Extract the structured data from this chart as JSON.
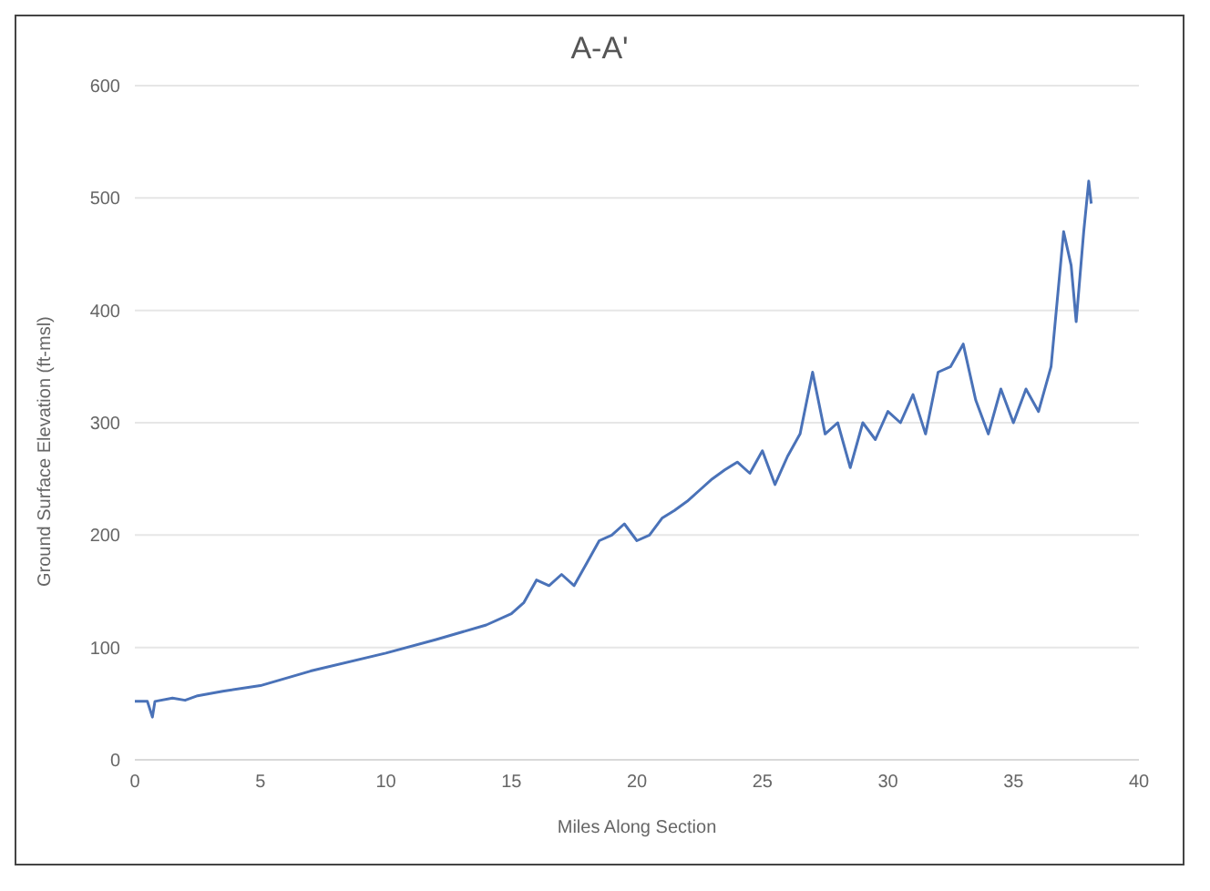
{
  "chart_data": {
    "type": "line",
    "title": "A-A'",
    "xlabel": "Miles Along Section",
    "ylabel": "Ground Surface Elevation (ft-msl)",
    "x": [
      0,
      0.5,
      0.7,
      0.8,
      1.5,
      2,
      2.5,
      3.5,
      5,
      7,
      10,
      12,
      14,
      15,
      15.5,
      16,
      16.5,
      17,
      17.5,
      18,
      18.5,
      19,
      19.5,
      20,
      20.5,
      21,
      21.5,
      22,
      22.5,
      23,
      23.5,
      24,
      24.5,
      25,
      25.5,
      26,
      26.5,
      27,
      27.5,
      28,
      28.5,
      29,
      29.5,
      30,
      30.5,
      31,
      31.5,
      32,
      32.5,
      33,
      33.5,
      34,
      34.5,
      35,
      35.5,
      36,
      36.5,
      37,
      37.3,
      37.5,
      37.8,
      38,
      38.1
    ],
    "series": [
      {
        "color": "#4a72b8",
        "values": [
          52,
          52,
          38,
          52,
          55,
          53,
          57,
          61,
          66,
          79,
          95,
          107,
          120,
          130,
          140,
          160,
          155,
          165,
          155,
          175,
          195,
          200,
          210,
          195,
          200,
          215,
          222,
          230,
          240,
          250,
          258,
          265,
          255,
          275,
          245,
          270,
          290,
          345,
          290,
          300,
          260,
          300,
          285,
          310,
          300,
          325,
          290,
          345,
          350,
          370,
          320,
          290,
          330,
          300,
          330,
          310,
          350,
          470,
          440,
          390,
          470,
          515,
          495
        ]
      }
    ],
    "xlim": [
      0,
      40
    ],
    "xticks": [
      0,
      5,
      10,
      15,
      20,
      25,
      30,
      35,
      40
    ],
    "ylim": [
      0,
      600
    ],
    "yticks": [
      0,
      100,
      200,
      300,
      400,
      500,
      600
    ],
    "grid": "y",
    "legend": false,
    "marker": "none",
    "line_style": "solid"
  }
}
